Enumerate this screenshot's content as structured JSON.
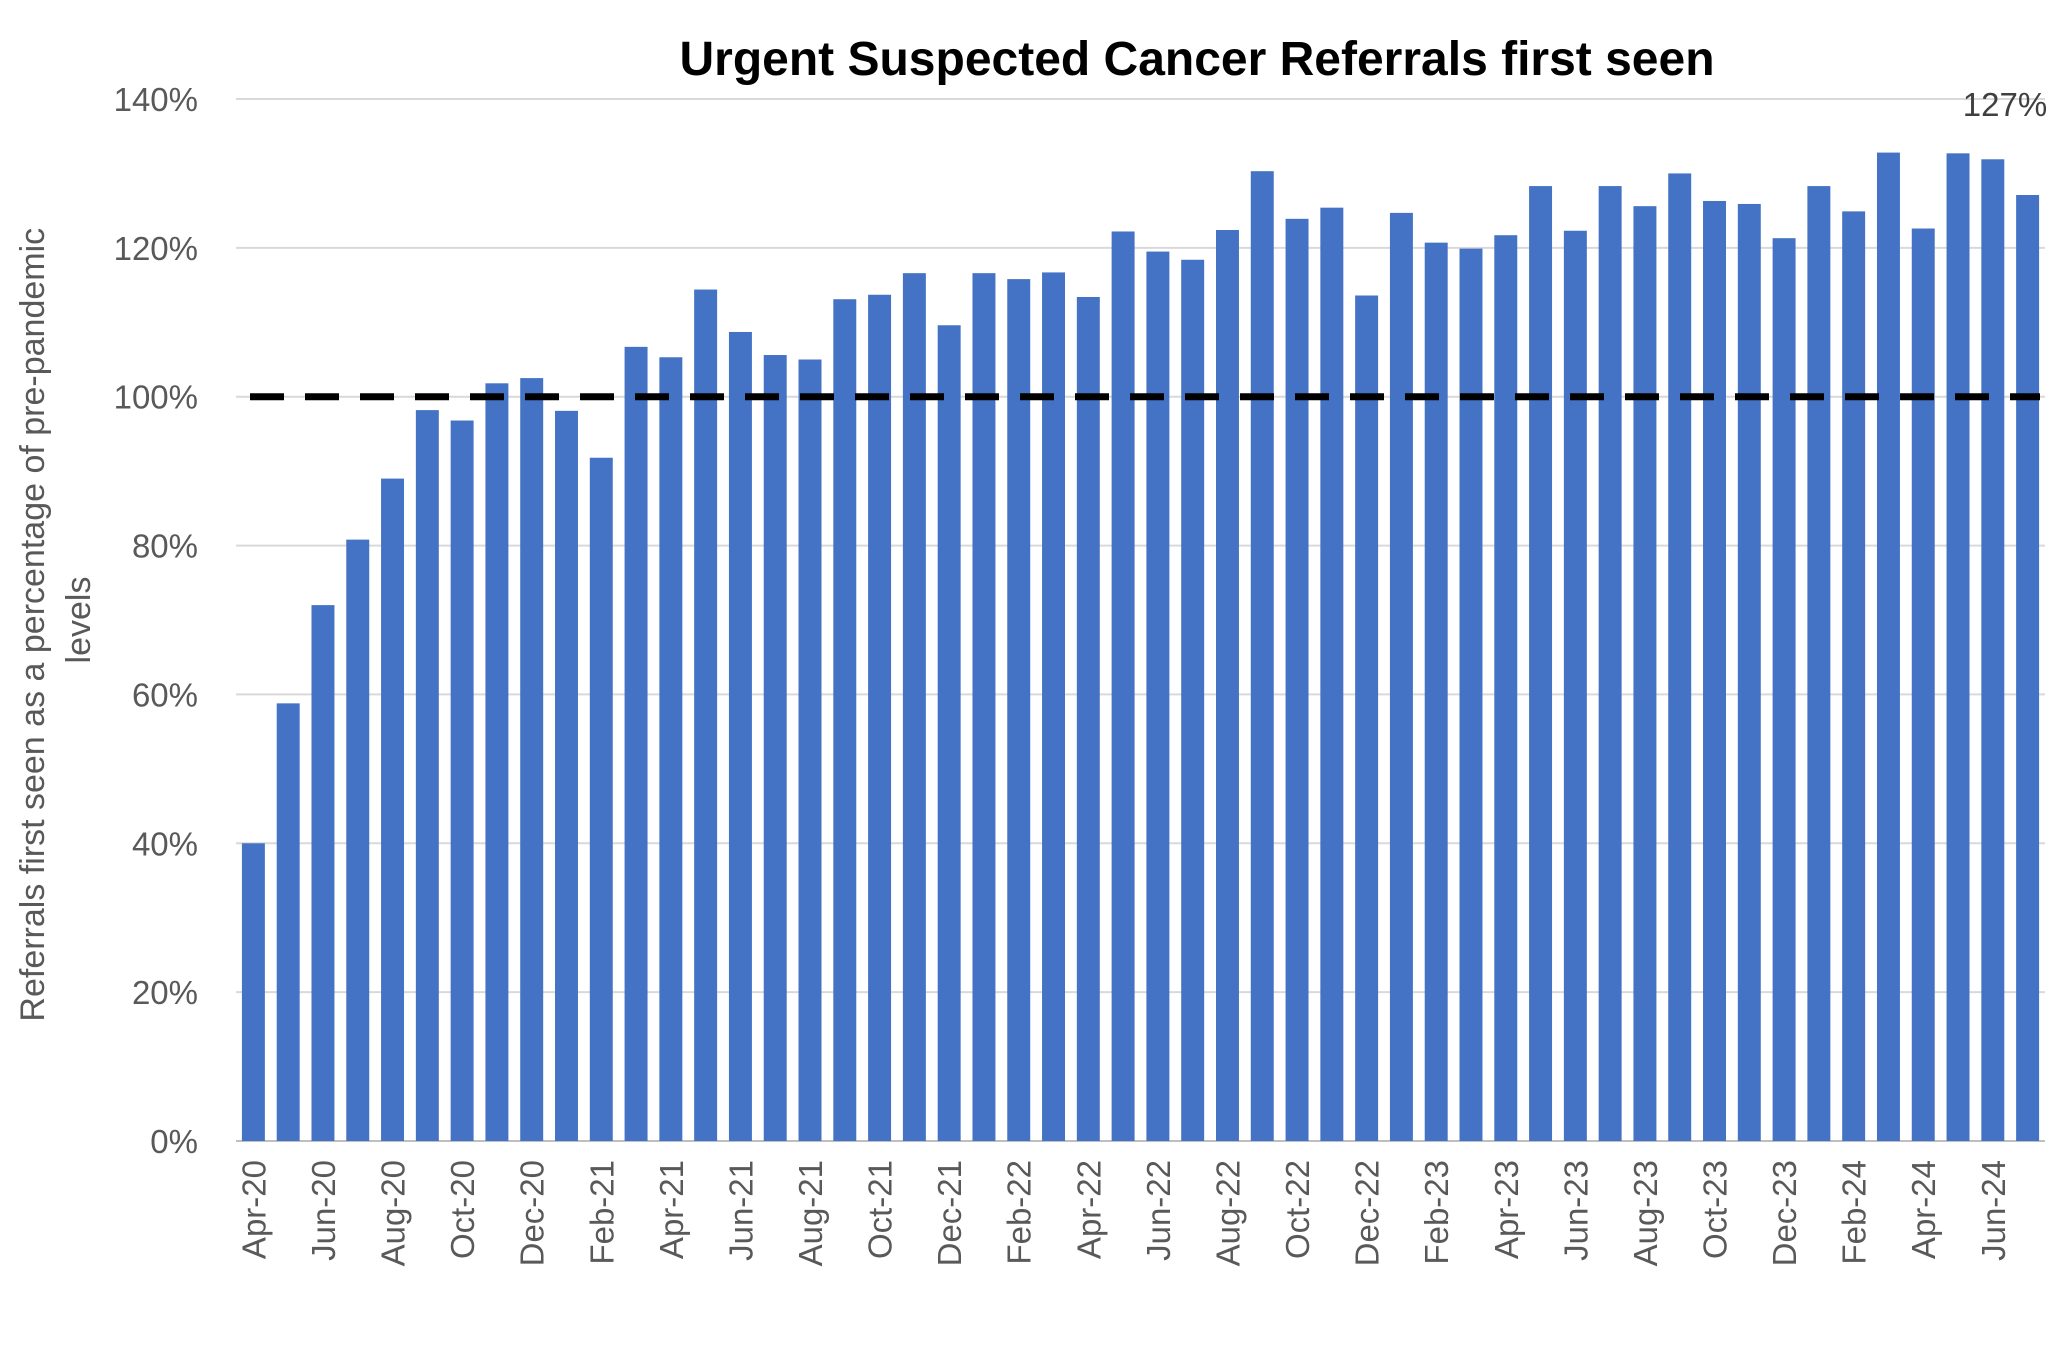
{
  "chart_data": {
    "type": "bar",
    "title": "Urgent Suspected Cancer Referrals first seen",
    "ylabel": [
      "Referrals first seen as a percentage of pre-pandemic",
      "levels"
    ],
    "xlabel": "",
    "ylim": [
      0,
      140
    ],
    "y_ticks": [
      "0%",
      "20%",
      "40%",
      "60%",
      "80%",
      "100%",
      "120%",
      "140%"
    ],
    "grid": true,
    "bar_color": "#4472C4",
    "reference_line": {
      "value": 100,
      "style": "dashed",
      "color": "#000000"
    },
    "categories": [
      "Apr-20",
      "May-20",
      "Jun-20",
      "Jul-20",
      "Aug-20",
      "Sep-20",
      "Oct-20",
      "Nov-20",
      "Dec-20",
      "Jan-21",
      "Feb-21",
      "Mar-21",
      "Apr-21",
      "May-21",
      "Jun-21",
      "Jul-21",
      "Aug-21",
      "Sep-21",
      "Oct-21",
      "Nov-21",
      "Dec-21",
      "Jan-22",
      "Feb-22",
      "Mar-22",
      "Apr-22",
      "May-22",
      "Jun-22",
      "Jul-22",
      "Aug-22",
      "Sep-22",
      "Oct-22",
      "Nov-22",
      "Dec-22",
      "Jan-23",
      "Feb-23",
      "Mar-23",
      "Apr-23",
      "May-23",
      "Jun-23",
      "Jul-23",
      "Aug-23",
      "Sep-23",
      "Oct-23",
      "Nov-23",
      "Dec-23",
      "Jan-24",
      "Feb-24",
      "Mar-24",
      "Apr-24",
      "May-24",
      "Jun-24",
      "Jul-24"
    ],
    "x_tick_labels": [
      "Apr-20",
      "",
      "Jun-20",
      "",
      "Aug-20",
      "",
      "Oct-20",
      "",
      "Dec-20",
      "",
      "Feb-21",
      "",
      "Apr-21",
      "",
      "Jun-21",
      "",
      "Aug-21",
      "",
      "Oct-21",
      "",
      "Dec-21",
      "",
      "Feb-22",
      "",
      "Apr-22",
      "",
      "Jun-22",
      "",
      "Aug-22",
      "",
      "Oct-22",
      "",
      "Dec-22",
      "",
      "Feb-23",
      "",
      "Apr-23",
      "",
      "Jun-23",
      "",
      "Aug-23",
      "",
      "Oct-23",
      "",
      "Dec-23",
      "",
      "Feb-24",
      "",
      "Apr-24",
      "",
      "Jun-24",
      ""
    ],
    "values": [
      40,
      58.8,
      72,
      80.8,
      89,
      98.2,
      96.8,
      101.8,
      102.5,
      98.1,
      91.8,
      106.7,
      105.3,
      114.4,
      108.7,
      105.6,
      105,
      113.1,
      113.7,
      116.6,
      109.6,
      116.6,
      115.8,
      116.7,
      113.4,
      122.2,
      119.5,
      118.4,
      122.4,
      130.3,
      123.9,
      125.4,
      113.6,
      124.7,
      120.7,
      119.9,
      121.7,
      128.3,
      122.3,
      128.3,
      125.6,
      130,
      126.3,
      125.9,
      121.3,
      128.3,
      124.9,
      132.8,
      122.6,
      132.7,
      131.9,
      127.1
    ],
    "data_labels": [
      {
        "index": 51,
        "text": "127%"
      }
    ]
  }
}
